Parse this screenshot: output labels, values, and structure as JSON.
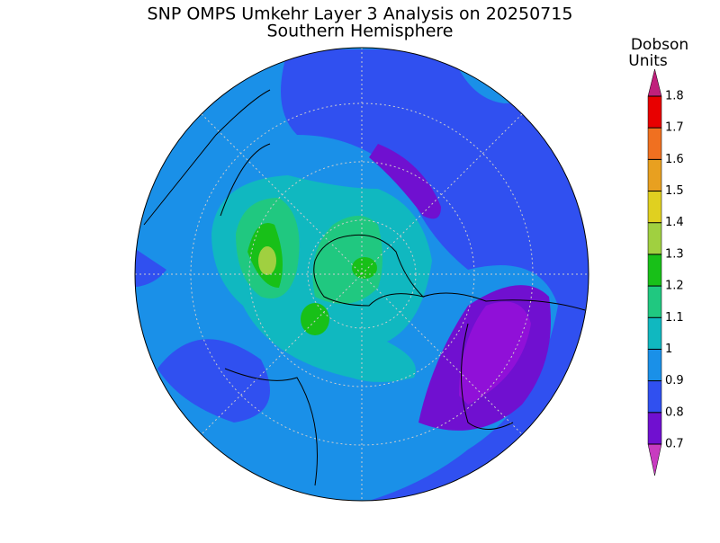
{
  "header": {
    "title": "SNP OMPS Umkehr Layer 3 Analysis on 20250715",
    "subtitle": "Southern Hemisphere"
  },
  "colorbar": {
    "label_lines": [
      "Dobson",
      "Units"
    ],
    "ticks": [
      0.7,
      0.8,
      0.9,
      1,
      1.1,
      1.2,
      1.3,
      1.4,
      1.5,
      1.6,
      1.7,
      1.8
    ],
    "under_color": "#c83cc0",
    "colors": [
      "#7010d0",
      "#3050f0",
      "#1a90e8",
      "#10b8c0",
      "#20c880",
      "#18c018",
      "#a0d040",
      "#e0d020",
      "#e8a020",
      "#f07020",
      "#e80000"
    ],
    "over_color": "#c0207c"
  }
}
